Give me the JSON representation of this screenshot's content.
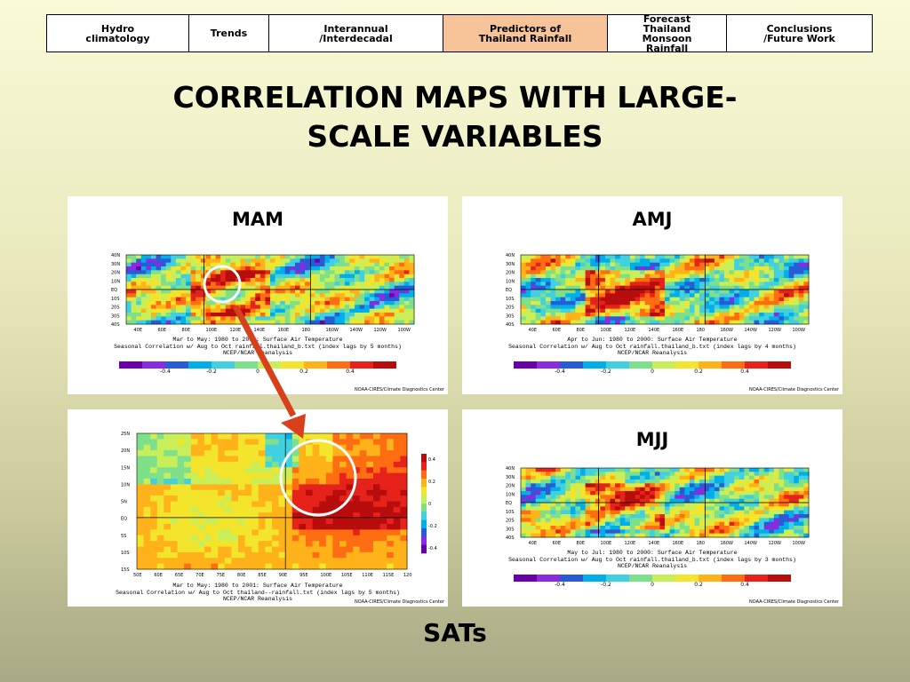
{
  "nav": {
    "tabs": [
      {
        "label": "Hydro\nclimatology",
        "active": false
      },
      {
        "label": "Trends",
        "active": false
      },
      {
        "label": "Interannual\n/Interdecadal",
        "active": false
      },
      {
        "label": "Predictors of\nThailand Rainfall",
        "active": true
      },
      {
        "label": "Forecast\nThailand\nMonsoon\nRainfall",
        "active": false
      },
      {
        "label": "Conclusions\n/Future Work",
        "active": false
      }
    ],
    "active_color": "#f7c49a"
  },
  "title": "CORRELATION MAPS WITH LARGE-\nSCALE VARIABLES",
  "colorbar_labels": [
    "-0.4",
    "-0.2",
    "0",
    "0.2",
    "0.4"
  ],
  "credit": "NOAA-CIRES/Climate Diagnostics Center",
  "panels": {
    "mam": {
      "title": "MAM",
      "caption": "Mar to May: 1980 to 2000: Surface Air Temperature\nSeasonal Correlation w/ Aug to Oct rainfall.thailand_b.txt (index lags by 5 months)\nNCEP/NCAR Reanalysis"
    },
    "amj": {
      "title": "AMJ",
      "caption": "Apr to Jun: 1980 to 2000: Surface Air Temperature\nSeasonal Correlation w/ Aug to Oct rainfall.thailand_b.txt (index lags by 4 months)\nNCEP/NCAR Reanalysis"
    },
    "zoom": {
      "caption": "Mar to May: 1980 to 2001: Surface Air Temperature\nSeasonal Correlation w/ Aug to Oct thailand--rainfall.txt (index lags by 5 months)\nNCEP/NCAR Reanalysis"
    },
    "mjj": {
      "title": "MJJ",
      "caption": "May to Jul: 1980 to 2000: Surface Air Temperature\nSeasonal Correlation w/ Aug to Oct rainfall.thailand_b.txt (index lags by 3 months)\nNCEP/NCAR Reanalysis"
    }
  },
  "global_lat_labels": [
    "40N",
    "30N",
    "20N",
    "10N",
    "EQ",
    "10S",
    "20S",
    "30S",
    "40S"
  ],
  "global_lon_labels": [
    "40E",
    "60E",
    "80E",
    "100E",
    "120E",
    "140E",
    "160E",
    "180",
    "160W",
    "140W",
    "120W",
    "100W"
  ],
  "zoom_lat_labels": [
    "25N",
    "20N",
    "15N",
    "10N",
    "5N",
    "EQ",
    "5S",
    "10S",
    "15S"
  ],
  "zoom_lon_labels": [
    "50E",
    "60E",
    "65E",
    "70E",
    "75E",
    "80E",
    "85E",
    "90E",
    "95E",
    "100E",
    "105E",
    "110E",
    "115E",
    "120E"
  ],
  "footer": "SATs",
  "colors": {
    "arrow": "#d8401c",
    "circle": "#ffffff"
  }
}
